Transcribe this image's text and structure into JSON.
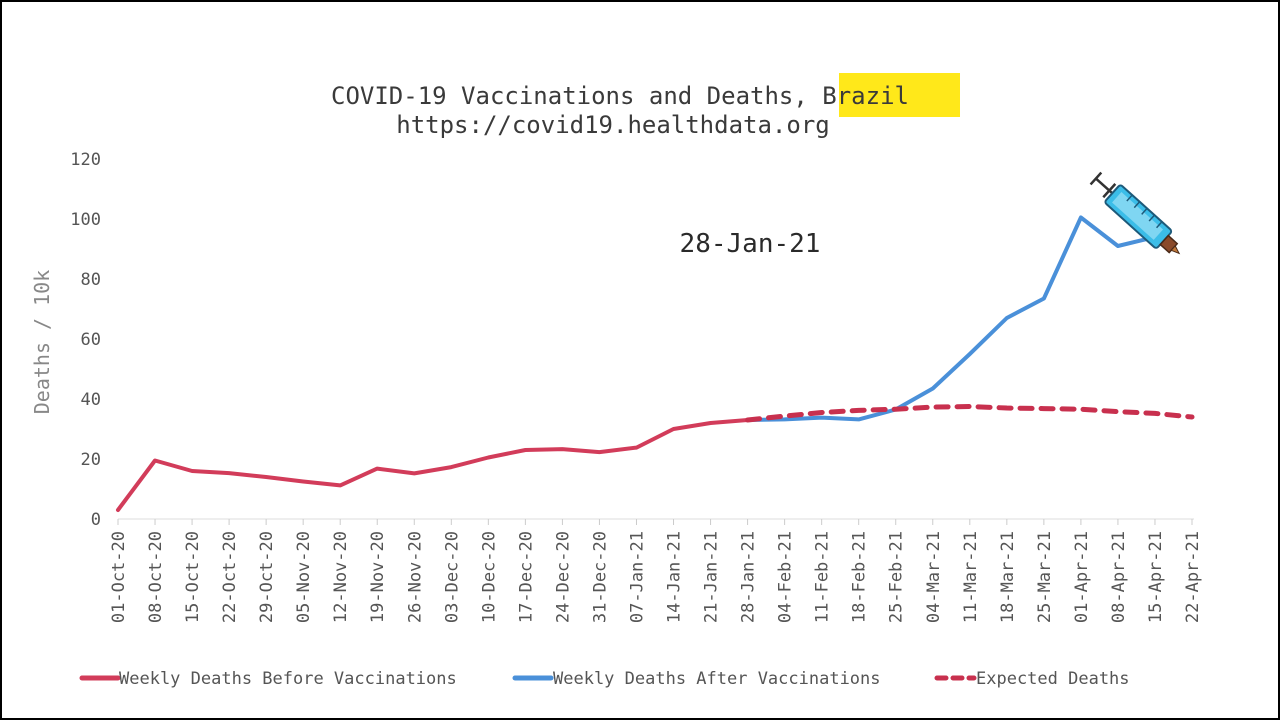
{
  "chart_data": {
    "type": "line",
    "title_line1_prefix": "COVID-19 Vaccinations and Deaths, ",
    "title_highlight": "Brazil",
    "title_line2": "https://covid19.healthdata.org",
    "ylabel": "Deaths / 10k",
    "ylim": [
      0,
      120
    ],
    "yticks": [
      "0",
      "20",
      "40",
      "60",
      "80",
      "100",
      "120"
    ],
    "grid": false,
    "legend_position": "bottom",
    "annotation": "28-Jan-21",
    "categories": [
      "01-Oct-20",
      "08-Oct-20",
      "15-Oct-20",
      "22-Oct-20",
      "29-Oct-20",
      "05-Nov-20",
      "12-Nov-20",
      "19-Nov-20",
      "26-Nov-20",
      "03-Dec-20",
      "10-Dec-20",
      "17-Dec-20",
      "24-Dec-20",
      "31-Dec-20",
      "07-Jan-21",
      "14-Jan-21",
      "21-Jan-21",
      "28-Jan-21",
      "04-Feb-21",
      "11-Feb-21",
      "18-Feb-21",
      "25-Feb-21",
      "04-Mar-21",
      "11-Mar-21",
      "18-Mar-21",
      "25-Mar-21",
      "01-Apr-21",
      "08-Apr-21",
      "15-Apr-21",
      "22-Apr-21"
    ],
    "series": [
      {
        "name": "Weekly Deaths Before Vaccinations",
        "color": "#d23c5a",
        "style": "solid",
        "values": [
          3,
          19.5,
          16,
          15.3,
          14,
          12.5,
          11.2,
          16.8,
          15.2,
          17.3,
          20.5,
          23,
          23.3,
          22.3,
          23.8,
          30,
          32,
          33,
          null,
          null,
          null,
          null,
          null,
          null,
          null,
          null,
          null,
          null,
          null,
          null
        ]
      },
      {
        "name": "Weekly Deaths After Vaccinations",
        "color": "#4a90d9",
        "style": "solid",
        "values": [
          null,
          null,
          null,
          null,
          null,
          null,
          null,
          null,
          null,
          null,
          null,
          null,
          null,
          null,
          null,
          null,
          null,
          33,
          33.2,
          33.8,
          33.2,
          36.5,
          43.5,
          55,
          67,
          73.5,
          100.5,
          91,
          94,
          null
        ]
      },
      {
        "name": "Expected Deaths",
        "color": "#c8304e",
        "style": "dashed",
        "values": [
          null,
          null,
          null,
          null,
          null,
          null,
          null,
          null,
          null,
          null,
          null,
          null,
          null,
          null,
          null,
          null,
          null,
          33,
          34.3,
          35.5,
          36.2,
          36.6,
          37.3,
          37.5,
          37,
          36.8,
          36.6,
          35.8,
          35.2,
          34
        ]
      }
    ]
  },
  "icons": {
    "syringe": "syringe-icon"
  }
}
